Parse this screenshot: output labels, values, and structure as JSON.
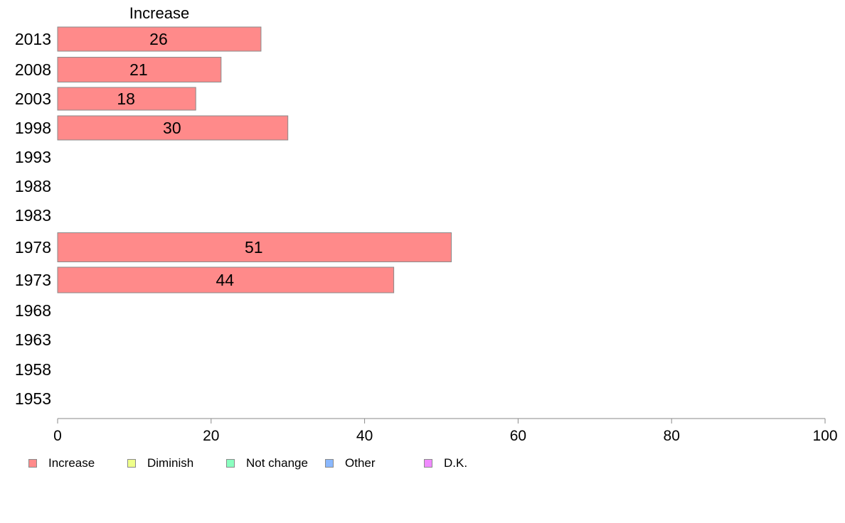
{
  "chart_data": {
    "type": "bar",
    "orientation": "horizontal",
    "title": "Increase",
    "categories": [
      "2013",
      "2008",
      "2003",
      "1998",
      "1993",
      "1988",
      "1983",
      "1978",
      "1973",
      "1968",
      "1963",
      "1958",
      "1953"
    ],
    "series": [
      {
        "name": "Increase",
        "color": "#ff8a8a",
        "values": [
          26.5,
          21.3,
          18,
          30,
          null,
          null,
          null,
          51.3,
          43.8,
          null,
          null,
          null,
          null
        ],
        "labels": [
          "26",
          "21",
          "18",
          "30",
          "",
          "",
          "",
          "51",
          "44",
          "",
          "",
          "",
          ""
        ]
      }
    ],
    "xlim": [
      0,
      100
    ],
    "xticks": [
      "0",
      "20",
      "40",
      "60",
      "80",
      "100"
    ],
    "grid": false,
    "legend_position": "bottom-left",
    "legend": [
      {
        "label": "Increase",
        "color": "#ff8a8a"
      },
      {
        "label": "Diminish",
        "color": "#efff8a"
      },
      {
        "label": "Not change",
        "color": "#8affc0"
      },
      {
        "label": "Other",
        "color": "#8ab8ff"
      },
      {
        "label": "D.K.",
        "color": "#f08aff"
      }
    ]
  }
}
